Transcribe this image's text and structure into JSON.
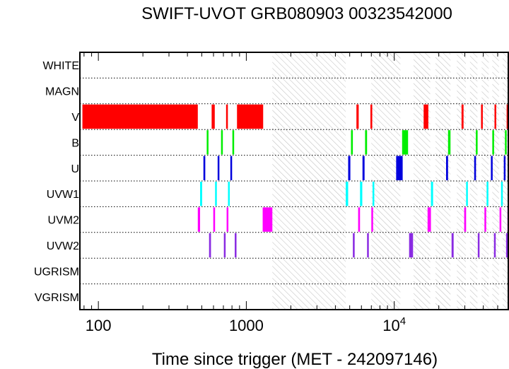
{
  "chart_data": {
    "type": "timeline",
    "title": "SWIFT-UVOT GRB080903 00323542000",
    "xlabel": "Time since trigger (MET - 242097146)",
    "x_scale": "log",
    "xlim": [
      75,
      59000
    ],
    "x_ticks": [
      {
        "value": 100,
        "label": "100"
      },
      {
        "value": 1000,
        "label": "1000"
      },
      {
        "value": 10000,
        "label": "10",
        "exp": "4"
      }
    ],
    "filters": [
      "WHITE",
      "MAGN",
      "V",
      "B",
      "U",
      "UVW1",
      "UVM2",
      "UVW2",
      "UGRISM",
      "VGRISM"
    ],
    "filter_colors": {
      "V": "#ff0000",
      "B": "#00ee00",
      "U": "#0000dd",
      "UVW1": "#00ffff",
      "UVM2": "#ff00ff",
      "UVW2": "#8a2be2"
    },
    "gap_intervals": [
      [
        1500,
        4700
      ],
      [
        7000,
        11000
      ],
      [
        13500,
        17500
      ],
      [
        19000,
        24000
      ],
      [
        26500,
        30500
      ],
      [
        32500,
        36500
      ],
      [
        39000,
        43500
      ],
      [
        46000,
        51000
      ],
      [
        54000,
        59000
      ]
    ],
    "exposures": {
      "V": [
        [
          78,
          470
        ],
        [
          583,
          612
        ],
        [
          730,
          745
        ],
        [
          865,
          1300
        ],
        [
          5550,
          5750
        ],
        [
          6900,
          7100
        ],
        [
          15800,
          17000
        ],
        [
          28500,
          29400
        ],
        [
          38600,
          39400
        ],
        [
          47600,
          48400
        ],
        [
          57500,
          58800
        ]
      ],
      "B": [
        [
          540,
          555
        ],
        [
          675,
          688
        ],
        [
          805,
          818
        ],
        [
          5100,
          5250
        ],
        [
          6350,
          6550
        ],
        [
          11300,
          12400
        ],
        [
          23100,
          24000
        ],
        [
          35600,
          36600
        ],
        [
          46000,
          46800
        ],
        [
          56000,
          57000
        ]
      ],
      "U": [
        [
          513,
          528
        ],
        [
          640,
          656
        ],
        [
          780,
          795
        ],
        [
          4880,
          5050
        ],
        [
          6100,
          6300
        ],
        [
          10300,
          11400
        ],
        [
          22400,
          23100
        ],
        [
          34700,
          35700
        ],
        [
          45000,
          45800
        ],
        [
          55000,
          56000
        ]
      ],
      "UVW1": [
        [
          487,
          503
        ],
        [
          615,
          631
        ],
        [
          752,
          768
        ],
        [
          4700,
          4880
        ],
        [
          5870,
          6080
        ],
        [
          7130,
          7300
        ],
        [
          17700,
          18300
        ],
        [
          30600,
          31400
        ],
        [
          42100,
          42900
        ],
        [
          52700,
          53500
        ]
      ],
      "UVM2": [
        [
          470,
          487
        ],
        [
          598,
          615
        ],
        [
          736,
          752
        ],
        [
          1290,
          1500
        ],
        [
          5700,
          5870
        ],
        [
          7000,
          7130
        ],
        [
          16800,
          17700
        ],
        [
          29700,
          30600
        ],
        [
          40700,
          41500
        ],
        [
          51500,
          52300
        ],
        [
          58200,
          59000
        ]
      ],
      "UVW2": [
        [
          560,
          577
        ],
        [
          705,
          720
        ],
        [
          835,
          848
        ],
        [
          5250,
          5400
        ],
        [
          6550,
          6700
        ],
        [
          12600,
          13400
        ],
        [
          24400,
          25200
        ],
        [
          36700,
          37300
        ],
        [
          47200,
          47700
        ],
        [
          57000,
          57500
        ]
      ]
    }
  }
}
